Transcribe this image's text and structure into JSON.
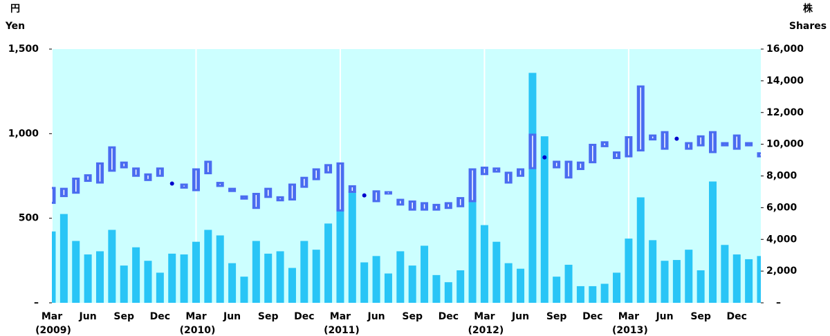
{
  "chart_data": {
    "type": "candlestick_volume",
    "y_label_top": "円",
    "y_label": "Yen",
    "y2_label_top": "株",
    "y2_label": "Shares",
    "categories": [
      "Mar",
      null,
      null,
      "Jun",
      null,
      null,
      "Sep",
      null,
      null,
      "Dec",
      null,
      null,
      "Mar",
      null,
      null,
      "Jun",
      null,
      null,
      "Sep",
      null,
      null,
      "Dec",
      null,
      null,
      "Mar",
      null,
      null,
      "Jun",
      null,
      null,
      "Sep",
      null,
      null,
      "Dec",
      null,
      null,
      "Mar",
      null,
      null,
      "Jun",
      null,
      null,
      "Sep",
      null,
      null,
      "Dec",
      null,
      null,
      "Mar",
      null,
      null,
      "Jun",
      null,
      null,
      "Sep",
      null,
      null,
      "Dec",
      null,
      null
    ],
    "years": [
      "(2009)",
      null,
      null,
      null,
      null,
      null,
      null,
      null,
      null,
      null,
      null,
      null,
      "(2010)",
      null,
      null,
      null,
      null,
      null,
      null,
      null,
      null,
      null,
      null,
      null,
      "(2011)",
      null,
      null,
      null,
      null,
      null,
      null,
      null,
      null,
      null,
      null,
      null,
      "(2012)",
      null,
      null,
      null,
      null,
      null,
      null,
      null,
      null,
      null,
      null,
      null,
      "(2013)",
      null,
      null,
      null,
      null,
      null,
      null,
      null,
      null,
      null,
      null,
      null
    ],
    "series": [
      {
        "type": "range",
        "axis": "y",
        "color": "#4a6cf0",
        "dot_color": "#0000cc",
        "low": [
          585,
          625,
          645,
          715,
          705,
          775,
          795,
          745,
          720,
          745,
          705,
          675,
          660,
          760,
          685,
          655,
          610,
          555,
          620,
          600,
          605,
          680,
          725,
          765,
          540,
          650,
          635,
          595,
          640,
          575,
          545,
          545,
          545,
          555,
          565,
          595,
          755,
          770,
          705,
          745,
          790,
          860,
          795,
          735,
          785,
          825,
          920,
          850,
          860,
          895,
          960,
          905,
          970,
          905,
          925,
          885,
          925,
          905,
          925,
          860
        ],
        "high": [
          685,
          680,
          740,
          760,
          830,
          925,
          835,
          800,
          765,
          800,
          705,
          705,
          795,
          840,
          715,
          680,
          635,
          650,
          680,
          630,
          705,
          745,
          795,
          820,
          830,
          695,
          635,
          665,
          660,
          615,
          605,
          595,
          585,
          595,
          625,
          795,
          805,
          800,
          775,
          795,
          1000,
          860,
          840,
          840,
          835,
          940,
          955,
          895,
          985,
          1285,
          995,
          1015,
          970,
          950,
          990,
          1015,
          950,
          995,
          950,
          890
        ]
      },
      {
        "type": "bar",
        "axis": "y2",
        "color": "#29c5f6",
        "values": [
          4500,
          5600,
          3900,
          3050,
          3250,
          4600,
          2350,
          3500,
          2650,
          1900,
          3100,
          3050,
          3850,
          4600,
          4250,
          2500,
          1650,
          3900,
          3100,
          3250,
          2200,
          3900,
          3350,
          5000,
          5950,
          7050,
          2550,
          2950,
          1850,
          3250,
          2350,
          3600,
          1750,
          1300,
          2050,
          6750,
          4900,
          3850,
          2500,
          2150,
          14500,
          10500,
          1650,
          2400,
          1050,
          1050,
          1200,
          1900,
          4050,
          6650,
          3950,
          2650,
          2700,
          3350,
          2050,
          7650,
          3650,
          3050,
          2750,
          2950
        ]
      }
    ],
    "ylim": [
      0,
      1500
    ],
    "yticks": [
      {
        "value": 0,
        "label": "–"
      },
      500,
      {
        "value": 1000,
        "label": "1,000"
      },
      {
        "value": 1500,
        "label": "1,500"
      }
    ],
    "y2lim": [
      0,
      16000
    ],
    "y2ticks": [
      {
        "value": 0,
        "label": "–"
      },
      {
        "value": 2000,
        "label": "2,000"
      },
      {
        "value": 4000,
        "label": "4,000"
      },
      {
        "value": 6000,
        "label": "6,000"
      },
      {
        "value": 8000,
        "label": "8,000"
      },
      {
        "value": 10000,
        "label": "10,000"
      },
      {
        "value": 12000,
        "label": "12,000"
      },
      {
        "value": 14000,
        "label": "14,000"
      },
      {
        "value": 16000,
        "label": "16,000"
      }
    ],
    "background": "#ccffff",
    "xgrid": true
  }
}
